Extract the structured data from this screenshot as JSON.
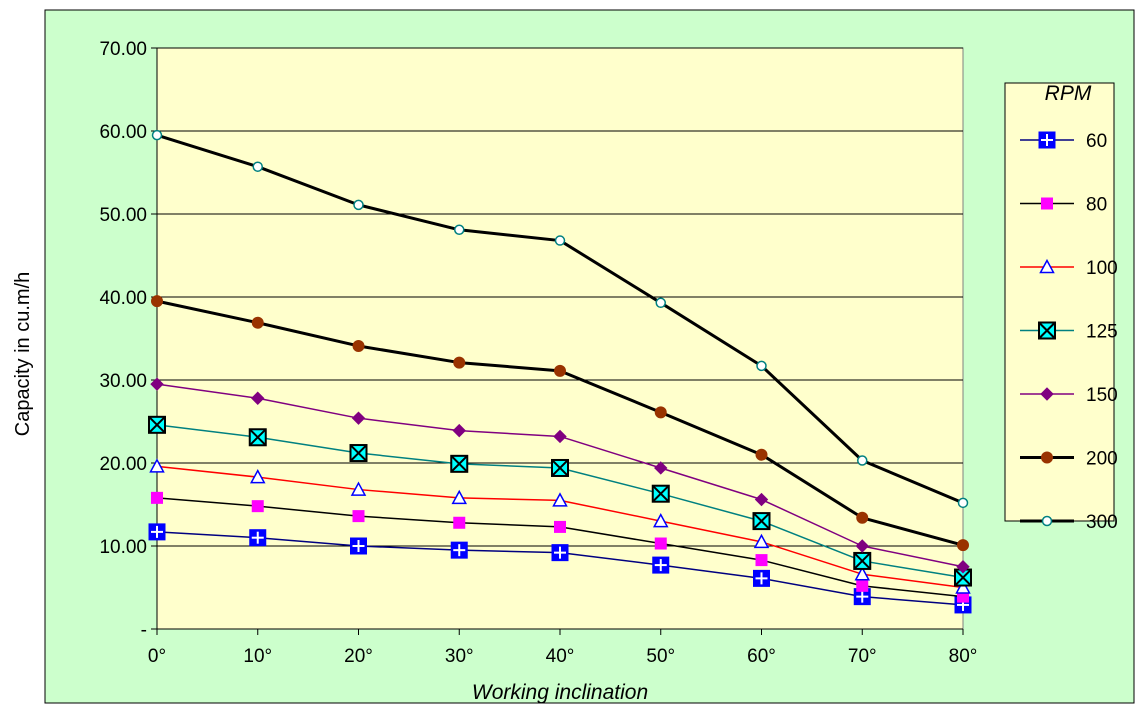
{
  "chart_data": {
    "type": "line",
    "title": "",
    "xlabel": "Working inclination",
    "ylabel": "Capacity in cu.m/h",
    "legend_title": "RPM",
    "legend_position": "right",
    "categories": [
      "0°",
      "10°",
      "20°",
      "30°",
      "40°",
      "50°",
      "60°",
      "70°",
      "80°"
    ],
    "ylim": [
      0,
      70
    ],
    "yticks": [
      0,
      10,
      20,
      30,
      40,
      50,
      60,
      70
    ],
    "ytick_labels": [
      "-",
      "10.00",
      "20.00",
      "30.00",
      "40.00",
      "50.00",
      "60.00",
      "70.00"
    ],
    "grid": {
      "horizontal": true,
      "vertical": false
    },
    "colors": {
      "figure_background": "#ccffcc",
      "plot_background": "#ffffcc",
      "legend_background": "#ffffcc",
      "gridline": "#000000"
    },
    "series": [
      {
        "name": "60",
        "values": [
          11.7,
          11.0,
          10.0,
          9.5,
          9.2,
          7.7,
          6.1,
          3.9,
          2.9
        ],
        "line_color": "#000080",
        "line_width": 1.5,
        "marker": "square-plus",
        "marker_fill": "#0000ff",
        "marker_stroke": "#0000ff"
      },
      {
        "name": "80",
        "values": [
          15.8,
          14.8,
          13.6,
          12.8,
          12.3,
          10.3,
          8.3,
          5.2,
          3.9
        ],
        "line_color": "#000000",
        "line_width": 1.5,
        "marker": "square",
        "marker_fill": "#ff00ff",
        "marker_stroke": "#ff00ff"
      },
      {
        "name": "100",
        "values": [
          19.6,
          18.3,
          16.8,
          15.8,
          15.5,
          13.0,
          10.5,
          6.6,
          5.0
        ],
        "line_color": "#ff0000",
        "line_width": 1.5,
        "marker": "triangle",
        "marker_fill": "#ffffff",
        "marker_stroke": "#0000ff"
      },
      {
        "name": "125",
        "values": [
          24.6,
          23.1,
          21.2,
          19.9,
          19.4,
          16.3,
          13.0,
          8.2,
          6.2
        ],
        "line_color": "#008080",
        "line_width": 1.5,
        "marker": "square-x",
        "marker_fill": "#00ffff",
        "marker_stroke": "#000000"
      },
      {
        "name": "150",
        "values": [
          29.5,
          27.8,
          25.4,
          23.9,
          23.2,
          19.4,
          15.6,
          10.0,
          7.5
        ],
        "line_color": "#800080",
        "line_width": 1.5,
        "marker": "diamond",
        "marker_fill": "#800080",
        "marker_stroke": "#800080"
      },
      {
        "name": "200",
        "values": [
          39.5,
          36.9,
          34.1,
          32.1,
          31.1,
          26.1,
          21.0,
          13.4,
          10.1
        ],
        "line_color": "#000000",
        "line_width": 3,
        "marker": "circle",
        "marker_fill": "#993300",
        "marker_stroke": "#993300"
      },
      {
        "name": "300",
        "values": [
          59.5,
          55.7,
          51.1,
          48.1,
          46.8,
          39.3,
          31.7,
          20.3,
          15.2
        ],
        "line_color": "#000000",
        "line_width": 3,
        "marker": "circle-open",
        "marker_fill": "#ffffff",
        "marker_stroke": "#008080"
      }
    ]
  }
}
